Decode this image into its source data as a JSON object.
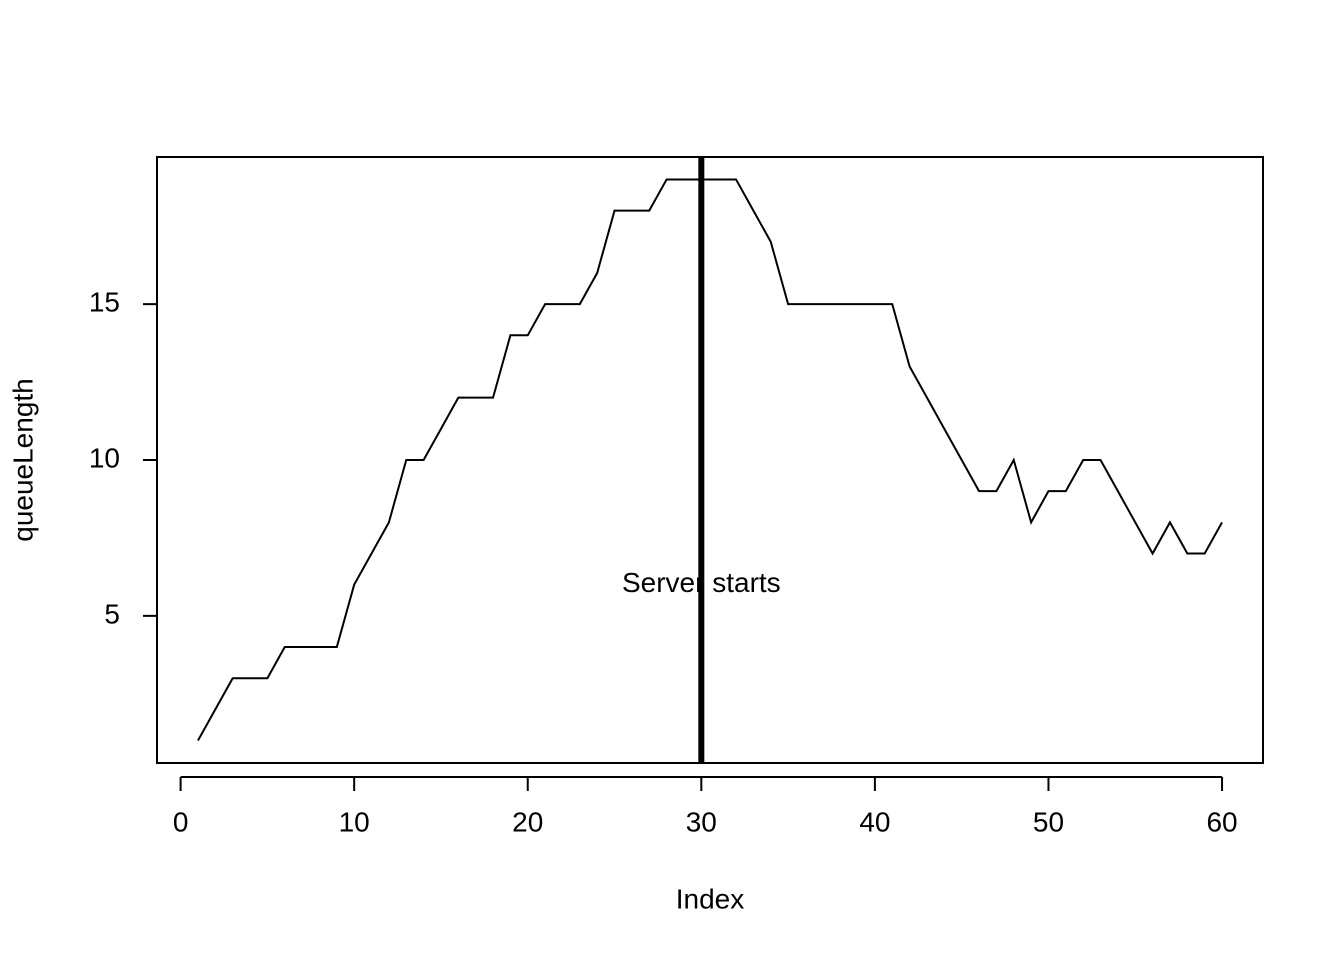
{
  "chart_data": {
    "type": "line",
    "x": [
      1,
      2,
      3,
      4,
      5,
      6,
      7,
      8,
      9,
      10,
      11,
      12,
      13,
      14,
      15,
      16,
      17,
      18,
      19,
      20,
      21,
      22,
      23,
      24,
      25,
      26,
      27,
      28,
      29,
      30,
      31,
      32,
      33,
      34,
      35,
      36,
      37,
      38,
      39,
      40,
      41,
      42,
      43,
      44,
      45,
      46,
      47,
      48,
      49,
      50,
      51,
      52,
      53,
      54,
      55,
      56,
      57,
      58,
      59,
      60
    ],
    "series": [
      {
        "color": "#000000",
        "values": [
          1,
          2,
          3,
          3,
          3,
          4,
          4,
          4,
          4,
          6,
          7,
          8,
          10,
          10,
          11,
          12,
          12,
          12,
          14,
          14,
          15,
          15,
          15,
          16,
          18,
          18,
          18,
          19,
          19,
          19,
          19,
          19,
          18,
          17,
          15,
          15,
          15,
          15,
          15,
          15,
          15,
          13,
          12,
          11,
          10,
          9,
          9,
          10,
          8,
          9,
          9,
          10,
          10,
          9,
          8,
          7,
          8,
          7,
          7,
          8
        ]
      }
    ],
    "xlabel": "Index",
    "ylabel": "queueLength",
    "xlim": [
      -1.36,
      62.36
    ],
    "ylim": [
      0.28,
      19.72
    ],
    "xticks": [
      0,
      10,
      20,
      30,
      40,
      50,
      60
    ],
    "yticks": [
      5,
      10,
      15
    ],
    "vline": {
      "x": 30,
      "color": "#000000"
    },
    "annotation": {
      "text": "Server starts",
      "x": 30,
      "y": 6
    }
  }
}
